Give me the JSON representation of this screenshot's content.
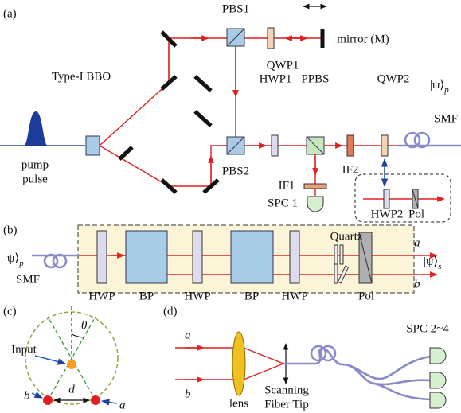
{
  "panel_a": {
    "label": "(a)",
    "pump": "pump",
    "pulse": "pulse",
    "bbo": "Type-I BBO",
    "pbs1": "PBS1",
    "pbs2": "PBS2",
    "qwp1": "QWP1",
    "mirror": "mirror (M)",
    "hwp1": "HWP1",
    "ppbs": "PPBS",
    "qwp2": "QWP2",
    "if1": "IF1",
    "if2": "IF2",
    "spc1": "SPC 1",
    "hwp2": "HWP2",
    "pol": "Pol",
    "state": {
      "ket": "|ψ⟩",
      "sub": "p"
    },
    "smf": "SMF"
  },
  "panel_b": {
    "label": "(b)",
    "state_in": {
      "ket": "|ψ⟩",
      "sub": "p"
    },
    "smf": "SMF",
    "elements": [
      "HWP",
      "BP",
      "HWP",
      "BP",
      "HWP",
      "Pol"
    ],
    "quartz": "Quartz",
    "a": "a",
    "b": "b",
    "state_out": {
      "ket": "|ψ⟩",
      "sub": "s"
    }
  },
  "panel_c": {
    "label": "(c)",
    "theta": "θ",
    "input": "Input",
    "d": "d",
    "b": "b",
    "a": "a"
  },
  "panel_d": {
    "label": "(d)",
    "a": "a",
    "b": "b",
    "lens": "lens",
    "scanning": "Scanning",
    "fiber_tip": "Fiber Tip",
    "spc": "SPC 2~4"
  }
}
